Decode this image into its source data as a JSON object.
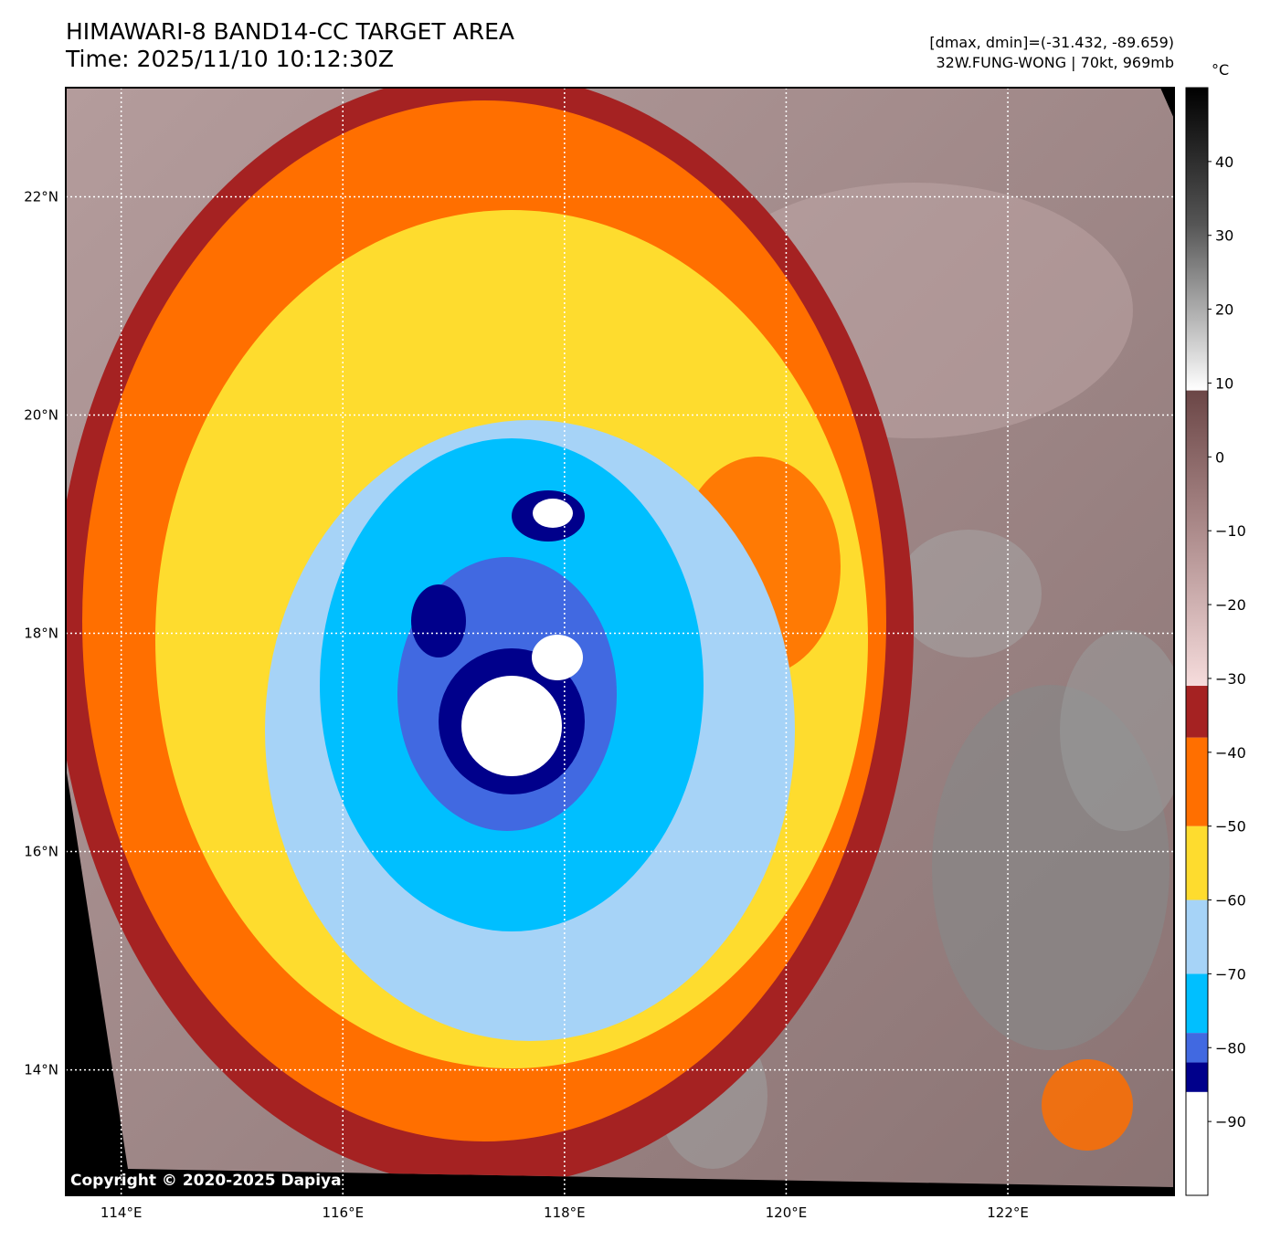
{
  "title": {
    "line1": "HIMAWARI-8 BAND14-CC TARGET AREA",
    "line2": "Time: 2025/11/10 10:12:30Z"
  },
  "info": {
    "range": "[dmax, dmin]=(-31.432, -89.659)",
    "storm": "32W.FUNG-WONG | 70kt, 969mb"
  },
  "copyright": "Copyright © 2020-2025 Dapiya",
  "map": {
    "lon_range": [
      113.5,
      123.5
    ],
    "lat_range": [
      12.85,
      23.0
    ],
    "lon_ticks": [
      "114°E",
      "116°E",
      "118°E",
      "120°E",
      "122°E"
    ],
    "lat_ticks": [
      "22°N",
      "20°N",
      "18°N",
      "16°N",
      "14°N"
    ],
    "storm_center": {
      "lon": 117.5,
      "lat": 17.2
    }
  },
  "colorbar": {
    "unit": "°C",
    "ticks": [
      "40",
      "30",
      "20",
      "10",
      "0",
      "−10",
      "−20",
      "−30",
      "−40",
      "−50",
      "−60",
      "−70",
      "−80",
      "−90"
    ],
    "range": [
      -100,
      50
    ],
    "bands": [
      {
        "from": -100,
        "to": -86,
        "color": "#ffffff"
      },
      {
        "from": -86,
        "to": -82,
        "color": "#00008b"
      },
      {
        "from": -82,
        "to": -78,
        "color": "#4169e1"
      },
      {
        "from": -78,
        "to": -70,
        "color": "#00bfff"
      },
      {
        "from": -70,
        "to": -60,
        "color": "#a6d3f7"
      },
      {
        "from": -60,
        "to": -50,
        "color": "#fedc2e"
      },
      {
        "from": -50,
        "to": -38,
        "color": "#ff6f00"
      },
      {
        "from": -38,
        "to": -31,
        "color": "#a52222"
      },
      {
        "from": -31,
        "to": 9,
        "color": "gradient-pink-brown"
      },
      {
        "from": 9,
        "to": 50,
        "color": "gradient-white-black"
      }
    ]
  }
}
